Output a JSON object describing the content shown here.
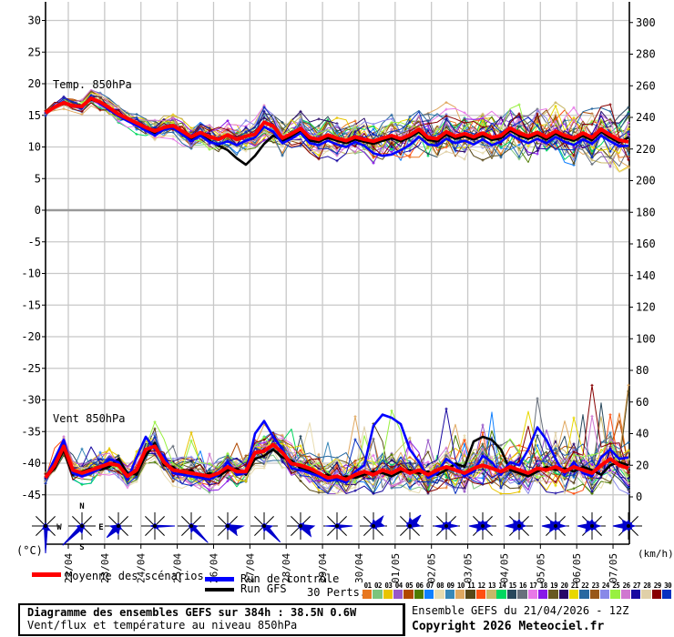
{
  "chart_data": {
    "type": "line",
    "title": "Diagramme des ensembles GEFS sur 384h : 38.5N 0.6W",
    "subtitle": "Vent/flux et température au niveau 850hPa",
    "x_tick_labels": [
      "22/04",
      "23/04",
      "24/04",
      "25/04",
      "26/04",
      "27/04",
      "28/04",
      "29/04",
      "30/04",
      "01/05",
      "02/05",
      "03/05",
      "04/05",
      "05/05",
      "06/05",
      "07/05"
    ],
    "points_per_series": 65,
    "step_hours": 6,
    "axes": {
      "left": {
        "unit_label": "(°C)",
        "min": -45,
        "max": 30,
        "tick": 5
      },
      "right": {
        "unit_label": "(km/h)",
        "min": 0,
        "max": 300,
        "tick": 20
      }
    },
    "series_colors": {
      "mean": "#ff0000",
      "control": "#0000ff",
      "gfs": "#000000"
    },
    "panels": {
      "temperature": {
        "label": "Temp. 850hPa",
        "spread_start": 0.5,
        "spread_end": 3.8,
        "mean": [
          15.4,
          16.3,
          17.0,
          16.5,
          16.4,
          17.7,
          17.1,
          16.2,
          15.2,
          14.5,
          13.8,
          13.1,
          12.5,
          13.1,
          13.4,
          12.5,
          11.6,
          12.3,
          11.6,
          11.2,
          11.9,
          11.2,
          11.7,
          12.0,
          13.9,
          13.3,
          11.4,
          12.1,
          12.9,
          11.5,
          11.2,
          11.9,
          11.4,
          11.0,
          11.6,
          11.2,
          10.9,
          11.4,
          11.8,
          11.3,
          11.9,
          12.8,
          11.5,
          11.3,
          12.4,
          11.7,
          12.1,
          11.6,
          12.2,
          11.5,
          11.8,
          13.0,
          12.2,
          11.7,
          12.3,
          11.6,
          12.5,
          11.8,
          11.4,
          12.2,
          11.5,
          12.8,
          11.9,
          11.1,
          10.8
        ],
        "control": [
          15.4,
          16.2,
          17.2,
          16.4,
          16.2,
          17.9,
          16.8,
          15.9,
          14.9,
          14.1,
          13.4,
          12.6,
          11.8,
          12.8,
          13.0,
          12.0,
          10.9,
          11.8,
          10.8,
          10.4,
          10.9,
          10.3,
          11.0,
          11.5,
          13.2,
          12.4,
          10.6,
          11.3,
          12.2,
          10.6,
          10.3,
          11.0,
          10.4,
          10.0,
          10.8,
          10.2,
          9.0,
          8.6,
          8.8,
          9.5,
          10.3,
          11.6,
          10.4,
          10.2,
          11.3,
          10.6,
          11.0,
          10.4,
          11.2,
          10.3,
          10.8,
          12.0,
          11.2,
          10.6,
          11.3,
          10.6,
          11.6,
          10.8,
          10.3,
          11.2,
          10.5,
          11.8,
          10.9,
          10.1,
          10.2
        ],
        "gfs": [
          15.4,
          16.4,
          16.8,
          16.6,
          16.5,
          17.5,
          17.0,
          16.0,
          15.0,
          14.3,
          13.6,
          12.9,
          12.2,
          12.9,
          13.2,
          12.2,
          11.2,
          11.9,
          11.0,
          10.2,
          9.5,
          8.2,
          7.2,
          8.6,
          10.5,
          11.8,
          11.0,
          11.6,
          12.4,
          11.0,
          10.8,
          11.5,
          11.0,
          10.6,
          11.2,
          10.8,
          10.5,
          11.0,
          11.4,
          10.9,
          11.5,
          12.4,
          11.1,
          10.9,
          12.0,
          11.3,
          11.7,
          11.2,
          11.8,
          11.1,
          11.4,
          12.6,
          11.8,
          11.3,
          11.9,
          11.2,
          12.1,
          11.4,
          11.0,
          11.8,
          11.1,
          12.4,
          11.5,
          10.7,
          11.5
        ]
      },
      "wind": {
        "label": "Vent 850hPa",
        "spread_start": 4,
        "spread_end": 13,
        "mean": [
          12,
          20,
          32,
          17,
          15,
          17,
          19,
          21,
          20,
          13,
          17,
          30,
          32,
          22,
          17,
          16,
          15,
          14,
          13,
          15,
          19,
          16,
          16,
          28,
          29,
          33,
          28,
          21,
          20,
          18,
          15,
          12,
          13,
          11,
          14,
          16,
          14,
          17,
          15,
          18,
          15,
          17,
          14,
          17,
          19,
          17,
          15,
          18,
          20,
          18,
          16,
          19,
          17,
          15,
          18,
          17,
          19,
          16,
          19,
          17,
          15,
          20,
          24,
          20,
          18
        ],
        "control": [
          12,
          24,
          36,
          15,
          13,
          15,
          18,
          24,
          22,
          11,
          25,
          38,
          30,
          26,
          15,
          14,
          13,
          12,
          11,
          14,
          22,
          14,
          15,
          40,
          48,
          38,
          30,
          18,
          17,
          15,
          13,
          10,
          11,
          9,
          16,
          20,
          45,
          52,
          50,
          46,
          30,
          22,
          12,
          15,
          24,
          20,
          13,
          16,
          26,
          22,
          14,
          22,
          20,
          30,
          44,
          36,
          24,
          14,
          22,
          15,
          13,
          25,
          30,
          24,
          25
        ],
        "gfs": [
          12,
          18,
          30,
          14,
          16,
          18,
          17,
          19,
          24,
          15,
          14,
          26,
          34,
          20,
          19,
          14,
          17,
          12,
          15,
          13,
          17,
          18,
          14,
          24,
          26,
          30,
          25,
          23,
          18,
          16,
          13,
          14,
          11,
          13,
          12,
          14,
          16,
          15,
          13,
          16,
          17,
          15,
          16,
          14,
          17,
          21,
          19,
          35,
          38,
          36,
          30,
          17,
          15,
          13,
          16,
          19,
          17,
          18,
          16,
          19,
          17,
          14,
          20,
          22,
          20
        ]
      }
    },
    "members": {
      "count": 30,
      "labels": [
        "01",
        "02",
        "03",
        "04",
        "05",
        "06",
        "07",
        "08",
        "09",
        "10",
        "11",
        "12",
        "13",
        "14",
        "15",
        "16",
        "17",
        "18",
        "19",
        "20",
        "21",
        "22",
        "23",
        "24",
        "25",
        "26",
        "27",
        "28",
        "29",
        "30"
      ],
      "colors": [
        "#e87820",
        "#7cc47c",
        "#e8c400",
        "#9858c8",
        "#b04800",
        "#4e7c00",
        "#1080ff",
        "#e8dcb0",
        "#3888b8",
        "#e0a860",
        "#584818",
        "#ff5010",
        "#c8b868",
        "#00d860",
        "#28485c",
        "#68707c",
        "#e878e8",
        "#8818e8",
        "#685820",
        "#280868",
        "#e8d800",
        "#2868a0",
        "#985818",
        "#8888e8",
        "#98f040",
        "#d078d0",
        "#1808a0",
        "#e0d0a8",
        "#880000",
        "#0830c0"
      ]
    },
    "wind_roses": {
      "compass": [
        "N",
        "E",
        "S",
        "W"
      ],
      "rose_color": "#0000cc",
      "radii": [
        [
          3,
          2,
          3,
          7,
          30,
          5,
          3,
          2
        ],
        [
          3,
          2,
          3,
          4,
          8,
          30,
          6,
          2
        ],
        [
          3,
          2,
          3,
          5,
          9,
          18,
          9,
          3
        ],
        [
          3,
          2,
          22,
          5,
          3,
          2,
          5,
          2
        ],
        [
          3,
          3,
          7,
          26,
          7,
          3,
          3,
          2
        ],
        [
          3,
          4,
          17,
          14,
          5,
          3,
          3,
          2
        ],
        [
          3,
          3,
          9,
          25,
          6,
          3,
          3,
          2
        ],
        [
          3,
          5,
          15,
          16,
          5,
          3,
          3,
          2
        ],
        [
          3,
          4,
          17,
          6,
          3,
          3,
          13,
          2
        ],
        [
          7,
          15,
          12,
          5,
          3,
          3,
          4,
          4
        ],
        [
          9,
          17,
          11,
          4,
          3,
          3,
          4,
          5
        ],
        [
          5,
          7,
          13,
          6,
          4,
          7,
          13,
          5
        ],
        [
          6,
          7,
          9,
          6,
          5,
          9,
          15,
          7
        ],
        [
          7,
          6,
          7,
          5,
          5,
          9,
          15,
          9
        ],
        [
          6,
          7,
          11,
          6,
          5,
          9,
          15,
          8
        ],
        [
          7,
          6,
          9,
          6,
          5,
          10,
          16,
          8
        ],
        [
          6,
          5,
          7,
          5,
          5,
          9,
          17,
          9
        ]
      ]
    }
  },
  "legend": {
    "mean": "Moyenne des scénarios",
    "control": "Run de contrôle",
    "gfs": "Run GFS",
    "perts": "30 Perts."
  },
  "footer": {
    "title": "Diagramme des ensembles GEFS sur 384h : 38.5N 0.6W",
    "subtitle": "Vent/flux et température au niveau 850hPa",
    "run_info": "Ensemble GEFS du 21/04/2026 - 12Z",
    "copyright": "Copyright 2026 Meteociel.fr"
  }
}
